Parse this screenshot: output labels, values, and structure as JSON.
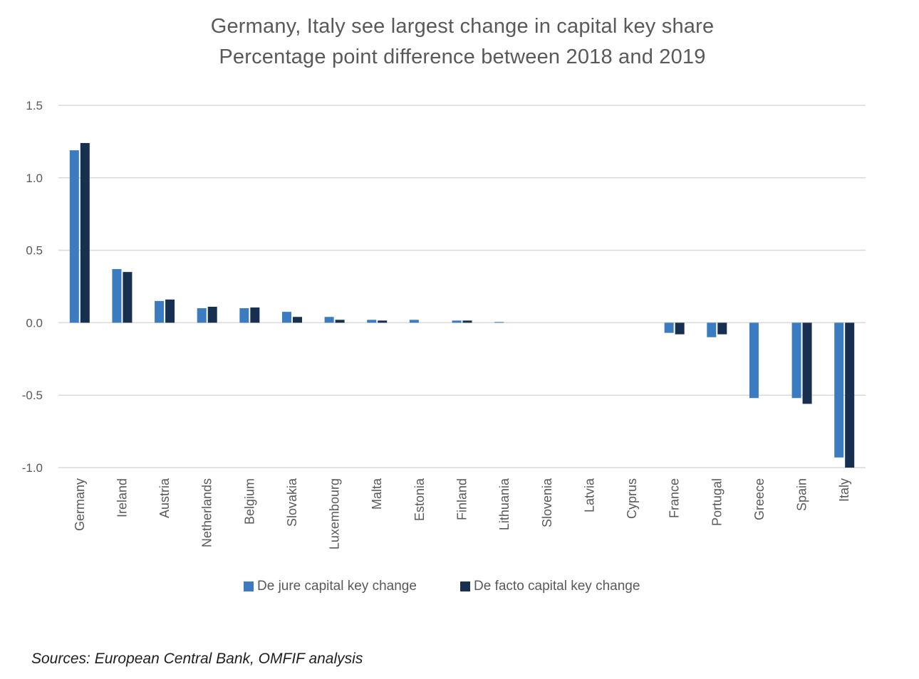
{
  "header": {
    "title": "Germany, Italy see largest change in capital key share",
    "subtitle": "Percentage point difference between 2018 and 2019"
  },
  "footer": {
    "source": "Sources: European Central Bank, OMFIF analysis"
  },
  "colors": {
    "de_jure": "#3b7bbf",
    "de_facto": "#17304f",
    "grid": "#d9d9d9",
    "axis_text": "#595959"
  },
  "chart_data": {
    "type": "bar",
    "title": "Germany, Italy see largest change in capital key share",
    "subtitle": "Percentage point difference between 2018 and 2019",
    "xlabel": "",
    "ylabel": "",
    "ylim": [
      -1.0,
      1.5
    ],
    "yticks": [
      1.5,
      1.0,
      0.5,
      0.0,
      -0.5,
      -1.0
    ],
    "ytick_labels": [
      "1.5",
      "1.0",
      "0.5",
      "0.0",
      "-0.5",
      "-1.0"
    ],
    "grid": true,
    "legend_position": "bottom",
    "categories": [
      "Germany",
      "Ireland",
      "Austria",
      "Netherlands",
      "Belgium",
      "Slovakia",
      "Luxembourg",
      "Malta",
      "Estonia",
      "Finland",
      "Lithuania",
      "Slovenia",
      "Latvia",
      "Cyprus",
      "France",
      "Portugal",
      "Greece",
      "Spain",
      "Italy"
    ],
    "series": [
      {
        "name": "De jure capital key change",
        "values": [
          1.19,
          0.37,
          0.15,
          0.1,
          0.1,
          0.075,
          0.04,
          0.02,
          0.02,
          0.015,
          0.005,
          0.0,
          0.0,
          0.0,
          -0.07,
          -0.1,
          -0.52,
          -0.52,
          -0.93
        ]
      },
      {
        "name": "De facto capital key change",
        "values": [
          1.24,
          0.35,
          0.16,
          0.11,
          0.105,
          0.04,
          0.02,
          0.015,
          0.0,
          0.015,
          0.0,
          0.0,
          0.0,
          0.0,
          -0.08,
          -0.08,
          0.0,
          -0.56,
          -1.0
        ]
      }
    ]
  }
}
